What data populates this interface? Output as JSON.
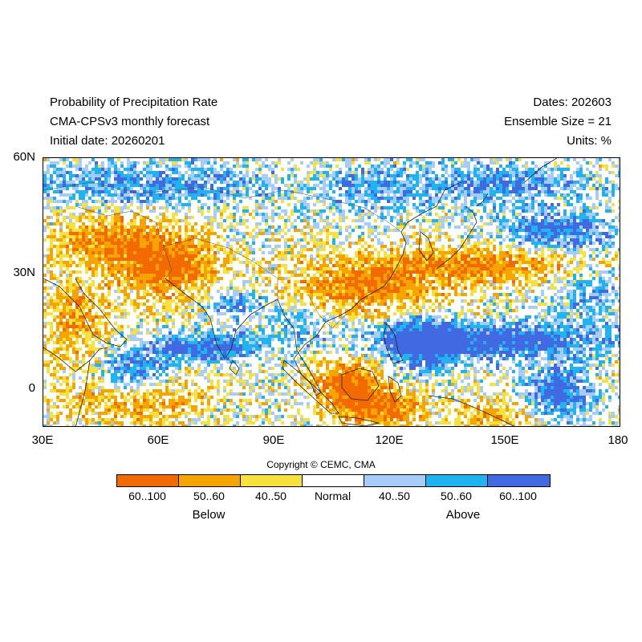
{
  "header": {
    "title": "Probability of Precipitation Rate",
    "model": "CMA-CPSv3 monthly forecast",
    "initial_date": "Initial date: 20260201",
    "dates": "Dates: 202603",
    "ensemble": "Ensemble Size = 21",
    "units": "Units: %"
  },
  "axes": {
    "lat_labels": [
      "60N",
      "30N",
      "0"
    ],
    "lat_values": [
      60,
      30,
      0
    ],
    "lon_labels": [
      "30E",
      "60E",
      "90E",
      "120E",
      "150E",
      "180"
    ],
    "lon_values": [
      30,
      60,
      90,
      120,
      150,
      180
    ],
    "lon_range": [
      30,
      180
    ],
    "lat_range": [
      -10,
      60
    ]
  },
  "copyright": "Copyright © CEMC, CMA",
  "legend": {
    "categories": [
      {
        "label": "60..100",
        "color": "#f36b00"
      },
      {
        "label": "50..60",
        "color": "#f5a400"
      },
      {
        "label": "40..50",
        "color": "#f7e13c"
      },
      {
        "label": "Normal",
        "color": "#ffffff"
      },
      {
        "label": "40..50",
        "color": "#a6cdf9"
      },
      {
        "label": "50..60",
        "color": "#1eb4ef"
      },
      {
        "label": "60..100",
        "color": "#4169e1"
      }
    ],
    "below_label": "Below",
    "above_label": "Above"
  }
}
